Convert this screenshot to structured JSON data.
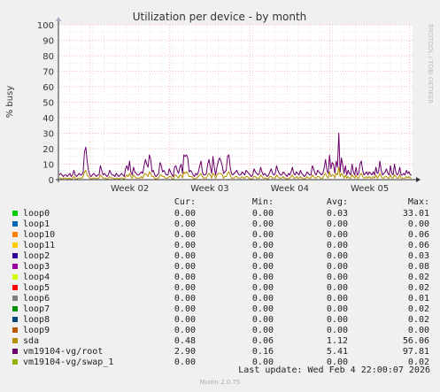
{
  "chart_data": {
    "type": "line",
    "title": "Utilization per device - by month",
    "ylabel": "% busy",
    "ylim": [
      0,
      100
    ],
    "yticks": [
      0,
      10,
      20,
      30,
      40,
      50,
      60,
      70,
      80,
      90,
      100
    ],
    "x_week_labels": [
      "Week 02",
      "Week 03",
      "Week 04",
      "Week 05"
    ],
    "grid": true,
    "side_label": "RRDTOOL / TOBI OETIKER",
    "columns": [
      "Cur:",
      "Min:",
      "Avg:",
      "Max:"
    ],
    "legend": [
      {
        "name": "loop0",
        "color": "#00cc00",
        "cur": "0.00",
        "min": "0.00",
        "avg": "0.03",
        "max": "33.01"
      },
      {
        "name": "loop1",
        "color": "#0066b3",
        "cur": "0.00",
        "min": "0.00",
        "avg": "0.00",
        "max": "0.00"
      },
      {
        "name": "loop10",
        "color": "#ff8000",
        "cur": "0.00",
        "min": "0.00",
        "avg": "0.00",
        "max": "0.06"
      },
      {
        "name": "loop11",
        "color": "#ffcc00",
        "cur": "0.00",
        "min": "0.00",
        "avg": "0.00",
        "max": "0.06"
      },
      {
        "name": "loop2",
        "color": "#330099",
        "cur": "0.00",
        "min": "0.00",
        "avg": "0.00",
        "max": "0.03"
      },
      {
        "name": "loop3",
        "color": "#990099",
        "cur": "0.00",
        "min": "0.00",
        "avg": "0.00",
        "max": "0.08"
      },
      {
        "name": "loop4",
        "color": "#ccff00",
        "cur": "0.00",
        "min": "0.00",
        "avg": "0.00",
        "max": "0.02"
      },
      {
        "name": "loop5",
        "color": "#ff0000",
        "cur": "0.00",
        "min": "0.00",
        "avg": "0.00",
        "max": "0.02"
      },
      {
        "name": "loop6",
        "color": "#808080",
        "cur": "0.00",
        "min": "0.00",
        "avg": "0.00",
        "max": "0.01"
      },
      {
        "name": "loop7",
        "color": "#008f00",
        "cur": "0.00",
        "min": "0.00",
        "avg": "0.00",
        "max": "0.02"
      },
      {
        "name": "loop8",
        "color": "#00487d",
        "cur": "0.00",
        "min": "0.00",
        "avg": "0.00",
        "max": "0.02"
      },
      {
        "name": "loop9",
        "color": "#b35a00",
        "cur": "0.00",
        "min": "0.00",
        "avg": "0.00",
        "max": "0.00"
      },
      {
        "name": "sda",
        "color": "#b38f00",
        "cur": "0.48",
        "min": "0.06",
        "avg": "1.12",
        "max": "56.06"
      },
      {
        "name": "vm19104-vg/root",
        "color": "#6b006b",
        "cur": "2.90",
        "min": "0.16",
        "avg": "5.41",
        "max": "97.81"
      },
      {
        "name": "vm19104-vg/swap_1",
        "color": "#8fb300",
        "cur": "0.00",
        "min": "0.00",
        "avg": "0.00",
        "max": "0.02"
      }
    ],
    "series": [
      {
        "name": "vm19104-vg/root",
        "color": "#6b006b",
        "values": [
          3,
          4,
          3,
          2,
          3,
          3,
          2,
          3,
          4,
          2,
          3,
          6,
          3,
          2,
          3,
          4,
          3,
          3,
          5,
          18,
          21,
          12,
          6,
          3,
          2,
          3,
          4,
          3,
          2,
          3,
          3,
          9,
          6,
          3,
          4,
          3,
          2,
          3,
          6,
          4,
          3,
          3,
          2,
          4,
          3,
          2,
          3,
          4,
          3,
          2,
          7,
          9,
          6,
          12,
          5,
          3,
          8,
          5,
          4,
          3,
          3,
          4,
          5,
          4,
          9,
          13,
          10,
          8,
          16,
          13,
          5,
          6,
          3,
          2,
          3,
          4,
          11,
          9,
          5,
          6,
          4,
          3,
          3,
          7,
          5,
          3,
          2,
          8,
          9,
          6,
          4,
          8,
          10,
          4,
          16,
          15,
          16,
          14,
          5,
          6,
          5,
          3,
          2,
          4,
          3,
          5,
          9,
          12,
          5,
          3,
          3,
          4,
          10,
          13,
          8,
          4,
          15,
          8,
          3,
          8,
          12,
          14,
          12,
          9,
          4,
          5,
          6,
          15,
          16,
          8,
          4,
          3,
          4,
          5,
          6,
          4,
          3,
          3,
          5,
          4,
          3,
          6,
          5,
          4,
          3,
          2,
          3,
          7,
          5,
          4,
          3,
          4,
          8,
          5,
          3,
          4,
          3,
          2,
          3,
          5,
          7,
          4,
          3,
          4,
          9,
          6,
          4,
          3,
          3,
          5,
          4,
          3,
          2,
          4,
          3,
          5,
          8,
          4,
          3,
          5,
          4,
          3,
          6,
          4,
          3,
          2,
          3,
          5,
          4,
          3,
          3,
          9,
          7,
          4,
          3,
          6,
          5,
          4,
          3,
          4,
          8,
          13,
          6,
          4,
          16,
          7,
          11,
          10,
          4,
          12,
          8,
          30,
          5,
          14,
          9,
          4,
          9,
          3,
          6,
          4,
          3,
          10,
          5,
          3,
          8,
          3,
          4,
          10,
          12,
          6,
          3,
          4,
          5,
          3,
          5,
          4,
          3,
          5,
          3,
          8,
          4,
          5,
          12,
          6,
          3,
          4,
          5,
          7,
          4,
          3,
          9,
          4,
          3,
          10,
          5,
          3,
          4,
          8,
          3,
          3,
          4,
          3,
          6,
          4,
          5,
          3,
          3
        ]
      },
      {
        "name": "sda",
        "color": "#b38f00",
        "values": [
          1,
          1,
          0,
          1,
          1,
          1,
          0,
          1,
          1,
          0,
          1,
          2,
          1,
          0,
          1,
          1,
          1,
          1,
          2,
          5,
          6,
          3,
          2,
          1,
          0,
          1,
          1,
          1,
          0,
          1,
          1,
          3,
          2,
          1,
          1,
          1,
          0,
          1,
          2,
          1,
          1,
          1,
          0,
          1,
          1,
          0,
          1,
          1,
          1,
          0,
          2,
          3,
          2,
          4,
          2,
          1,
          3,
          2,
          1,
          1,
          1,
          1,
          2,
          1,
          3,
          4,
          3,
          2,
          5,
          4,
          2,
          2,
          1,
          0,
          1,
          1,
          3,
          3,
          2,
          2,
          1,
          1,
          1,
          2,
          2,
          1,
          0,
          3,
          3,
          2,
          1,
          3,
          3,
          1,
          5,
          4,
          5,
          4,
          2,
          2,
          2,
          1,
          0,
          1,
          1,
          2,
          3,
          4,
          2,
          1,
          1,
          1,
          3,
          4,
          3,
          1,
          4,
          3,
          1,
          3,
          4,
          4,
          4,
          3,
          1,
          2,
          2,
          4,
          5,
          3,
          1,
          1,
          1,
          2,
          2,
          1,
          1,
          1,
          2,
          1,
          1,
          2,
          2,
          1,
          1,
          0,
          1,
          2,
          2,
          1,
          1,
          1,
          3,
          2,
          1,
          1,
          1,
          0,
          1,
          2,
          2,
          1,
          1,
          1,
          3,
          2,
          1,
          1,
          1,
          2,
          1,
          1,
          0,
          1,
          1,
          2,
          3,
          1,
          1,
          2,
          1,
          1,
          2,
          1,
          1,
          0,
          1,
          2,
          1,
          1,
          1,
          3,
          2,
          1,
          1,
          2,
          2,
          1,
          1,
          1,
          3,
          4,
          2,
          1,
          5,
          2,
          3,
          3,
          1,
          4,
          3,
          8,
          2,
          4,
          3,
          1,
          3,
          1,
          2,
          1,
          1,
          3,
          2,
          1,
          3,
          1,
          1,
          3,
          4,
          2,
          1,
          1,
          2,
          1,
          2,
          1,
          1,
          2,
          1,
          3,
          1,
          2,
          4,
          2,
          1,
          1,
          2,
          2,
          1,
          1,
          3,
          1,
          1,
          3,
          2,
          1,
          1,
          3,
          1,
          1,
          1,
          1,
          2,
          1,
          2,
          1,
          1
        ]
      }
    ]
  },
  "last_update": "Last update: Wed Feb  4 22:00:07 2026",
  "munin_version": "Munin 2.0.75"
}
